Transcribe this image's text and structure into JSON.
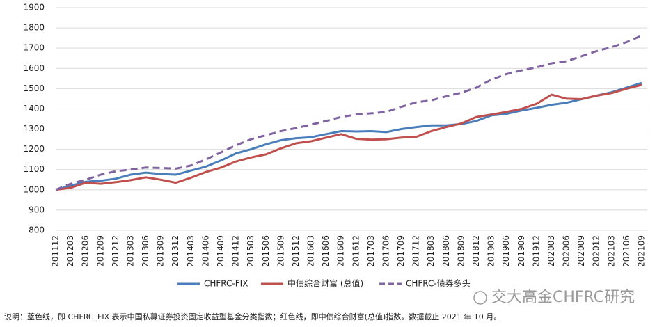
{
  "chart_data": {
    "type": "line",
    "categories": [
      "201112",
      "201203",
      "201206",
      "201209",
      "201212",
      "201303",
      "201306",
      "201309",
      "201312",
      "201403",
      "201406",
      "201409",
      "201412",
      "201503",
      "201506",
      "201509",
      "201512",
      "201603",
      "201606",
      "201609",
      "201612",
      "201703",
      "201706",
      "201709",
      "201712",
      "201803",
      "201806",
      "201809",
      "201812",
      "201903",
      "201906",
      "201909",
      "201912",
      "202003",
      "202006",
      "202009",
      "202012",
      "202103",
      "202106",
      "202109"
    ],
    "series": [
      {
        "name": "CHFRC-FIX",
        "color": "#4a7ebb",
        "dash": false,
        "values": [
          1000,
          1020,
          1040,
          1045,
          1055,
          1075,
          1085,
          1078,
          1075,
          1095,
          1115,
          1145,
          1180,
          1200,
          1225,
          1245,
          1255,
          1260,
          1275,
          1290,
          1288,
          1290,
          1285,
          1300,
          1310,
          1318,
          1318,
          1325,
          1340,
          1368,
          1375,
          1392,
          1405,
          1420,
          1430,
          1448,
          1465,
          1482,
          1505,
          1528
        ]
      },
      {
        "name": "中债综合财富 (总值)",
        "color": "#c0504d",
        "dash": false,
        "values": [
          1000,
          1010,
          1035,
          1030,
          1038,
          1048,
          1062,
          1050,
          1035,
          1060,
          1088,
          1110,
          1140,
          1160,
          1175,
          1205,
          1230,
          1240,
          1258,
          1275,
          1252,
          1248,
          1250,
          1258,
          1262,
          1290,
          1310,
          1328,
          1360,
          1372,
          1385,
          1400,
          1425,
          1470,
          1450,
          1448,
          1465,
          1478,
          1500,
          1518
        ]
      },
      {
        "name": "CHFRC-债券多头",
        "color": "#8064a2",
        "dash": true,
        "values": [
          1000,
          1030,
          1050,
          1075,
          1092,
          1100,
          1110,
          1108,
          1105,
          1120,
          1150,
          1185,
          1220,
          1250,
          1270,
          1290,
          1305,
          1322,
          1340,
          1360,
          1372,
          1378,
          1385,
          1410,
          1432,
          1442,
          1462,
          1480,
          1505,
          1545,
          1572,
          1590,
          1605,
          1625,
          1635,
          1660,
          1685,
          1705,
          1730,
          1762
        ]
      }
    ],
    "ylim": [
      800,
      1900
    ],
    "yticks": [
      800,
      900,
      1000,
      1100,
      1200,
      1300,
      1400,
      1500,
      1600,
      1700,
      1800,
      1900
    ],
    "grid": true,
    "legend": "bottom",
    "note": "说明：蓝色线，即 CHFRC_FIX 表示中国私募证券投资固定收益型基金分类指数；红色线，即中债综合财富(总值)指数。数据截止 2021 年 10 月。",
    "watermark": "交大高金CHFRC研究"
  }
}
